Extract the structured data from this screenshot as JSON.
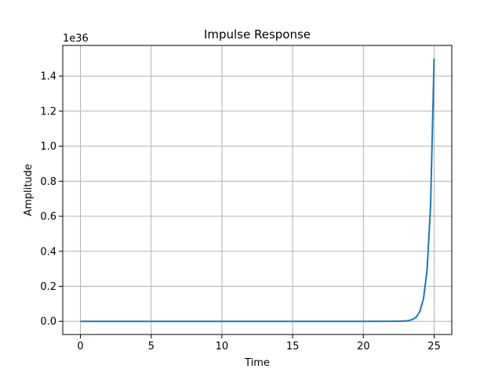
{
  "chart_data": {
    "type": "line",
    "title": "Impulse Response",
    "xlabel": "Time",
    "ylabel": "Amplitude",
    "offset_label": "1e36",
    "xlim": [
      -1.25,
      26.25
    ],
    "ylim": [
      -0.075,
      1.575
    ],
    "xticks": [
      0,
      5,
      10,
      15,
      20,
      25
    ],
    "yticks": [
      0.0,
      0.2,
      0.4,
      0.6,
      0.8,
      1.0,
      1.2,
      1.4
    ],
    "xtick_labels": [
      "0",
      "5",
      "10",
      "15",
      "20",
      "25"
    ],
    "ytick_labels": [
      "0.0",
      "0.2",
      "0.4",
      "0.6",
      "0.8",
      "1.0",
      "1.2",
      "1.4"
    ],
    "grid": true,
    "line_color": "#1f77b4",
    "grid_color": "#b0b0b0",
    "series": [
      {
        "x": [
          0,
          5,
          10,
          15,
          20,
          22,
          22.5,
          23,
          23.25,
          23.5,
          23.75,
          24,
          24.25,
          24.5,
          24.75,
          25
        ],
        "values": [
          0,
          0,
          0,
          0,
          0,
          0.0002,
          0.0007,
          0.0025,
          0.005,
          0.012,
          0.025,
          0.058,
          0.13,
          0.29,
          0.66,
          1.5
        ]
      }
    ]
  }
}
